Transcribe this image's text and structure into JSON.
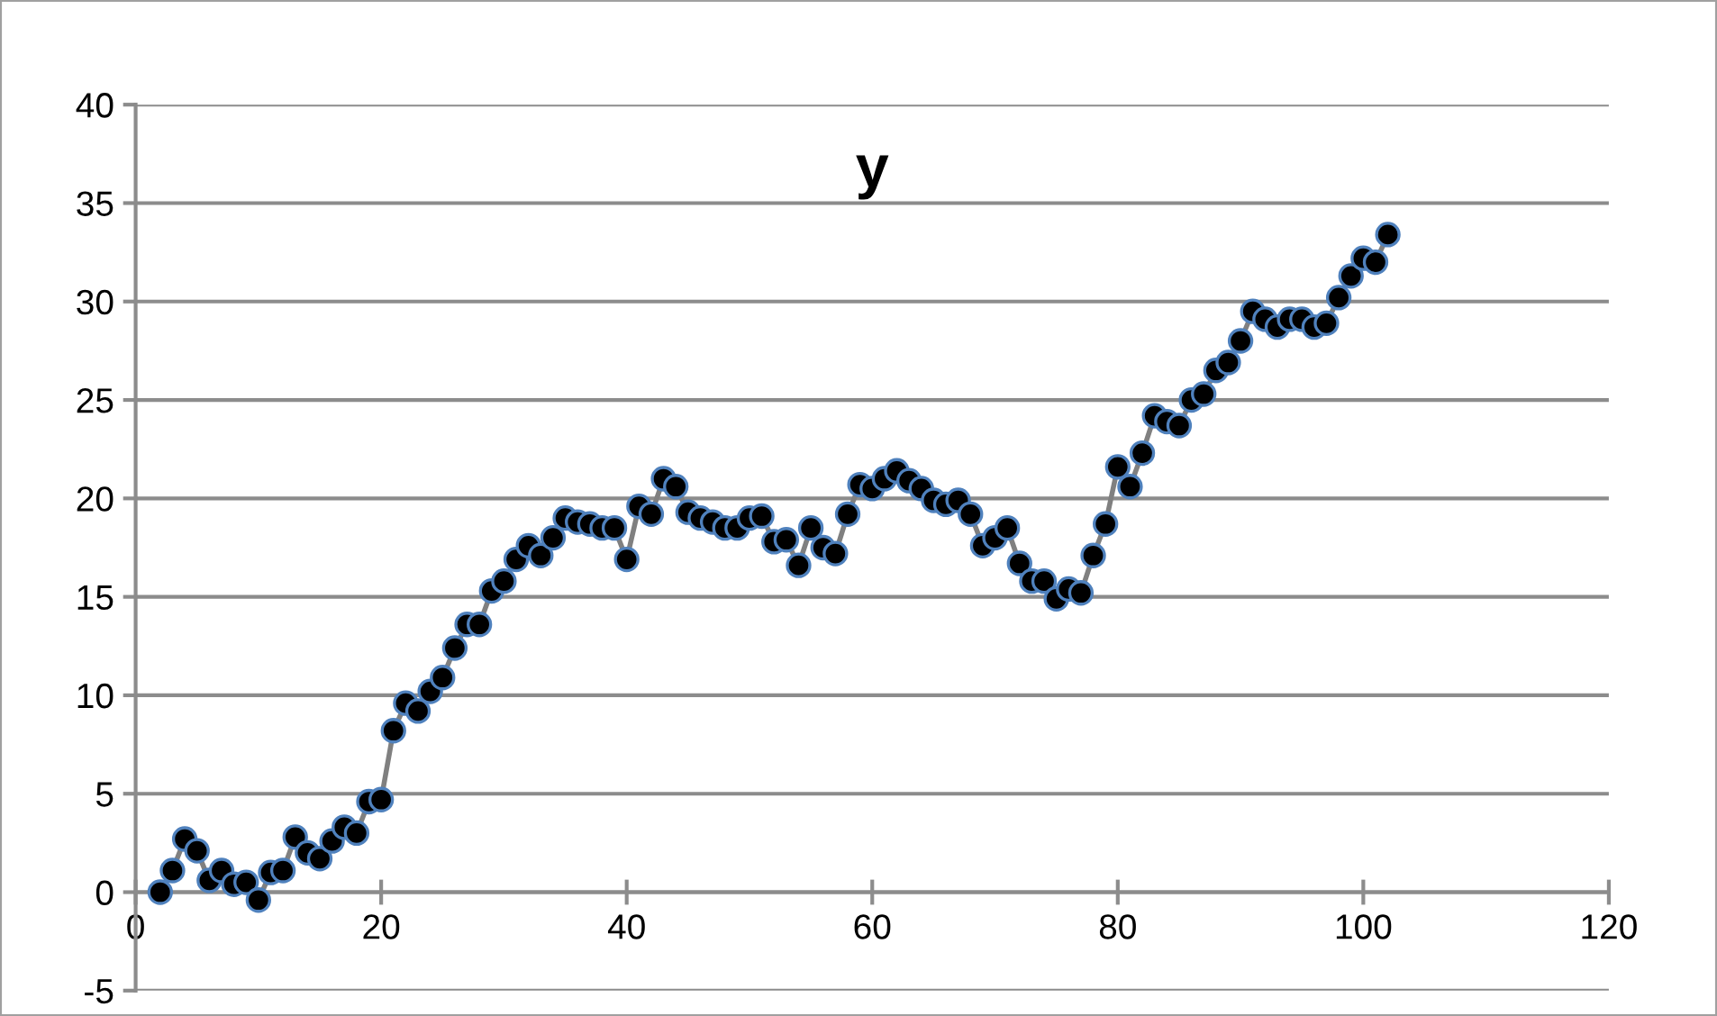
{
  "chart_data": {
    "type": "line",
    "title": "y",
    "marker": "circle",
    "grid": "y",
    "xlim": [
      0,
      120
    ],
    "ylim": [
      -5,
      40
    ],
    "xticks": [
      0,
      20,
      40,
      60,
      80,
      100,
      120
    ],
    "yticks": [
      -5,
      0,
      5,
      10,
      15,
      20,
      25,
      30,
      35,
      40
    ],
    "series": [
      {
        "color": "#000000",
        "x": [
          2,
          3,
          4,
          5,
          6,
          7,
          8,
          9,
          10,
          11,
          12,
          13,
          14,
          15,
          16,
          17,
          18,
          19,
          20,
          21,
          22,
          23,
          24,
          25,
          26,
          27,
          28,
          29,
          30,
          31,
          32,
          33,
          34,
          35,
          36,
          37,
          38,
          39,
          40,
          41,
          42,
          43,
          44,
          45,
          46,
          47,
          48,
          49,
          50,
          51,
          52,
          53,
          54,
          55,
          56,
          57,
          58,
          59,
          60,
          61,
          62,
          63,
          64,
          65,
          66,
          67,
          68,
          69,
          70,
          71,
          72,
          73,
          74,
          75,
          76,
          77,
          78,
          79,
          80,
          81,
          82,
          83,
          84,
          85,
          86,
          87,
          88,
          89,
          90,
          91,
          92,
          93,
          94,
          95,
          96,
          97,
          98,
          99,
          100,
          101,
          102
        ],
        "values": [
          0,
          1.1,
          2.7,
          2.1,
          0.6,
          1.1,
          0.4,
          0.5,
          -0.4,
          1.0,
          1.1,
          2.8,
          2.0,
          1.7,
          2.6,
          3.3,
          3.0,
          4.6,
          4.7,
          8.2,
          9.6,
          9.2,
          10.2,
          10.9,
          12.4,
          13.6,
          13.6,
          15.3,
          15.8,
          16.9,
          17.6,
          17.1,
          18.0,
          19.0,
          18.8,
          18.7,
          18.5,
          18.5,
          16.9,
          19.6,
          19.2,
          21.0,
          20.6,
          19.3,
          19.0,
          18.8,
          18.5,
          18.5,
          19.0,
          19.1,
          17.8,
          17.9,
          16.6,
          18.5,
          17.5,
          17.2,
          19.2,
          20.7,
          20.5,
          21.0,
          21.4,
          20.9,
          20.5,
          19.9,
          19.7,
          19.9,
          19.2,
          17.6,
          18.0,
          18.5,
          16.7,
          15.8,
          15.8,
          14.9,
          15.4,
          15.2,
          17.1,
          18.7,
          21.6,
          20.6,
          22.3,
          24.2,
          23.9,
          23.7,
          25.0,
          25.3,
          26.5,
          26.9,
          28.0,
          29.5,
          29.1,
          28.7,
          29.1,
          29.1,
          28.7,
          28.9,
          30.2,
          31.3,
          32.2,
          32.0,
          33.4
        ]
      }
    ]
  }
}
